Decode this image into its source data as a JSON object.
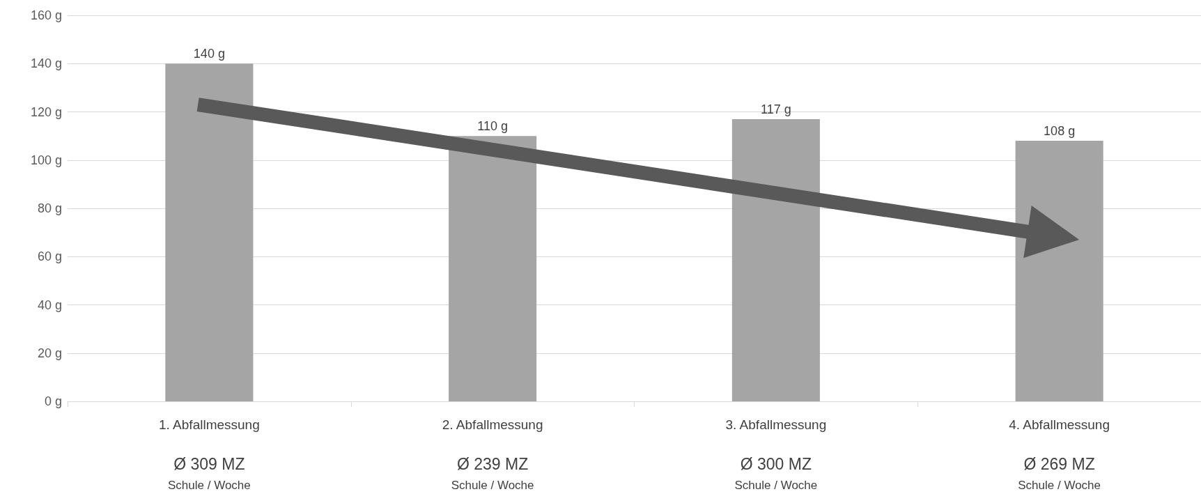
{
  "chart_data": {
    "type": "bar",
    "categories": [
      "1. Abfallmessung",
      "2. Abfallmessung",
      "3. Abfallmessung",
      "4. Abfallmessung"
    ],
    "values": [
      140,
      110,
      117,
      108
    ],
    "value_labels": [
      "140 g",
      "110 g",
      "117 g",
      "108 g"
    ],
    "color": "#a5a5a5",
    "ylim": [
      0,
      160
    ],
    "yticks": [
      {
        "value": 0,
        "label": "0 g"
      },
      {
        "value": 20,
        "label": "20 g"
      },
      {
        "value": 40,
        "label": "40 g"
      },
      {
        "value": 60,
        "label": "60 g"
      },
      {
        "value": 80,
        "label": "80 g"
      },
      {
        "value": 100,
        "label": "100 g"
      },
      {
        "value": 120,
        "label": "120 g"
      },
      {
        "value": 140,
        "label": "140 g"
      },
      {
        "value": 160,
        "label": "160 g"
      }
    ],
    "grid": "y",
    "annotations": [
      "Ø 309 MZ",
      "Schule / Woche",
      "Ø 239 MZ",
      "Schule / Woche",
      "Ø 300 MZ",
      "Schule / Woche",
      "Ø 269 MZ",
      "Schule / Woche"
    ]
  }
}
